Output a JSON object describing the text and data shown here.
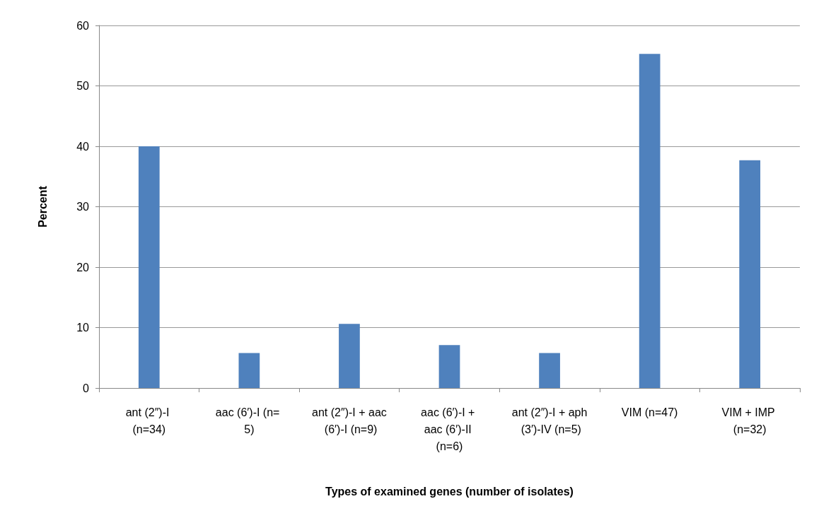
{
  "chart_data": {
    "type": "bar",
    "xlabel": "Types of examined genes (number of isolates)",
    "ylabel": "Percent",
    "categories": [
      "ant (2″)-I (n=34)",
      "aac (6′)-I (n= 5)",
      "ant (2″)-I + aac (6′)-I (n=9)",
      "aac (6′)-I + aac (6′)-II (n=6)",
      "ant (2″)-I + aph (3′)-IV (n=5)",
      "VIM (n=47)",
      "VIM + IMP (n=32)"
    ],
    "values": [
      40,
      5.8,
      10.6,
      7.1,
      5.8,
      55.3,
      37.7
    ],
    "color": "#4f81bd",
    "ylim": [
      0,
      60
    ],
    "yticks": [
      0,
      10,
      20,
      30,
      40,
      50,
      60
    ],
    "grid": "y"
  }
}
